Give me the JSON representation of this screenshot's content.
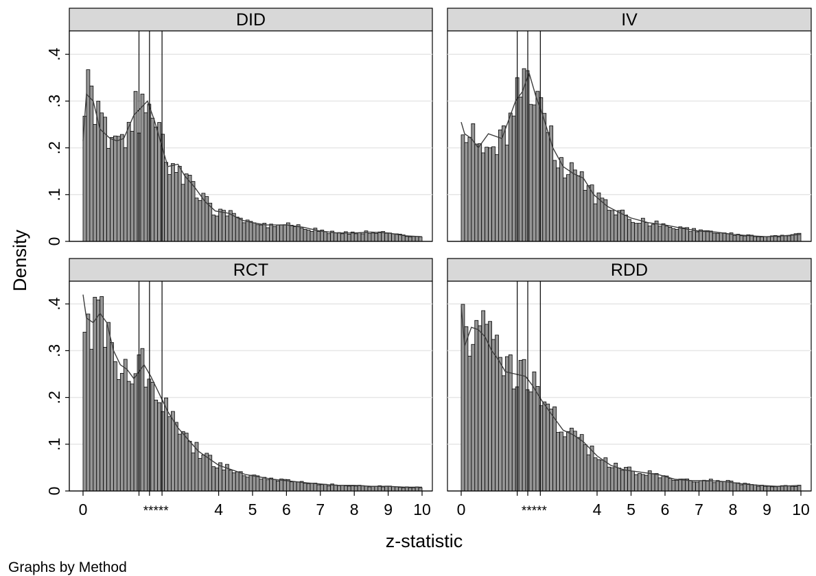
{
  "chart_data": {
    "type": "bar",
    "xlabel": "z-statistic",
    "ylabel": "Density",
    "note": "Graphs by Method",
    "xlim": [
      0,
      10
    ],
    "ylim": [
      0,
      0.42
    ],
    "x_ticks": [
      {
        "value": 0,
        "label": "0"
      },
      {
        "value": 4,
        "label": "4"
      },
      {
        "value": 5,
        "label": "5"
      },
      {
        "value": 6,
        "label": "6"
      },
      {
        "value": 7,
        "label": "7"
      },
      {
        "value": 8,
        "label": "8"
      },
      {
        "value": 9,
        "label": "9"
      },
      {
        "value": 10,
        "label": "10"
      }
    ],
    "x_star_label": {
      "value": 2.15,
      "label": "*****"
    },
    "y_ticks": [
      {
        "value": 0,
        "label": "0"
      },
      {
        "value": 0.1,
        "label": ".1"
      },
      {
        "value": 0.2,
        "label": ".2"
      },
      {
        "value": 0.3,
        "label": ".3"
      },
      {
        "value": 0.4,
        "label": ".4"
      }
    ],
    "significance_lines": [
      1.65,
      1.96,
      2.33
    ],
    "bin_width": 0.1,
    "grid": true,
    "panels": [
      {
        "title": "DID",
        "density": [
          [
            0,
            0.215
          ],
          [
            0.1,
            0.315
          ],
          [
            0.3,
            0.3
          ],
          [
            0.5,
            0.24
          ],
          [
            0.8,
            0.22
          ],
          [
            1.0,
            0.215
          ],
          [
            1.2,
            0.22
          ],
          [
            1.5,
            0.27
          ],
          [
            1.7,
            0.285
          ],
          [
            1.9,
            0.3
          ],
          [
            2.1,
            0.26
          ],
          [
            2.3,
            0.21
          ],
          [
            2.5,
            0.16
          ],
          [
            2.8,
            0.165
          ],
          [
            3.0,
            0.14
          ],
          [
            3.3,
            0.115
          ],
          [
            3.6,
            0.085
          ],
          [
            3.9,
            0.065
          ],
          [
            4.3,
            0.06
          ],
          [
            4.7,
            0.045
          ],
          [
            5.0,
            0.04
          ],
          [
            5.4,
            0.035
          ],
          [
            6.0,
            0.035
          ],
          [
            6.5,
            0.03
          ],
          [
            7.0,
            0.022
          ],
          [
            7.5,
            0.018
          ],
          [
            8.0,
            0.018
          ],
          [
            8.5,
            0.02
          ],
          [
            9.0,
            0.018
          ],
          [
            9.5,
            0.012
          ],
          [
            10.0,
            0.01
          ]
        ]
      },
      {
        "title": "IV",
        "density": [
          [
            0,
            0.255
          ],
          [
            0.1,
            0.23
          ],
          [
            0.3,
            0.22
          ],
          [
            0.5,
            0.2
          ],
          [
            0.8,
            0.23
          ],
          [
            1.2,
            0.22
          ],
          [
            1.6,
            0.3
          ],
          [
            1.8,
            0.32
          ],
          [
            2.0,
            0.36
          ],
          [
            2.2,
            0.31
          ],
          [
            2.4,
            0.27
          ],
          [
            2.7,
            0.2
          ],
          [
            3.0,
            0.16
          ],
          [
            3.3,
            0.145
          ],
          [
            3.6,
            0.135
          ],
          [
            3.9,
            0.1
          ],
          [
            4.3,
            0.075
          ],
          [
            4.7,
            0.06
          ],
          [
            5.0,
            0.05
          ],
          [
            5.5,
            0.04
          ],
          [
            6.0,
            0.035
          ],
          [
            6.5,
            0.028
          ],
          [
            7.0,
            0.022
          ],
          [
            7.5,
            0.02
          ],
          [
            8.0,
            0.015
          ],
          [
            8.5,
            0.012
          ],
          [
            9.0,
            0.01
          ],
          [
            9.5,
            0.012
          ],
          [
            10.0,
            0.015
          ]
        ]
      },
      {
        "title": "RCT",
        "density": [
          [
            0,
            0.42
          ],
          [
            0.1,
            0.37
          ],
          [
            0.3,
            0.36
          ],
          [
            0.5,
            0.38
          ],
          [
            0.7,
            0.36
          ],
          [
            0.9,
            0.3
          ],
          [
            1.1,
            0.27
          ],
          [
            1.3,
            0.26
          ],
          [
            1.5,
            0.24
          ],
          [
            1.8,
            0.27
          ],
          [
            2.0,
            0.245
          ],
          [
            2.2,
            0.215
          ],
          [
            2.5,
            0.17
          ],
          [
            2.8,
            0.135
          ],
          [
            3.1,
            0.11
          ],
          [
            3.4,
            0.085
          ],
          [
            3.7,
            0.07
          ],
          [
            4.0,
            0.055
          ],
          [
            4.4,
            0.045
          ],
          [
            4.8,
            0.035
          ],
          [
            5.2,
            0.03
          ],
          [
            5.6,
            0.025
          ],
          [
            6.0,
            0.022
          ],
          [
            6.5,
            0.018
          ],
          [
            7.0,
            0.015
          ],
          [
            7.5,
            0.012
          ],
          [
            8.0,
            0.012
          ],
          [
            8.5,
            0.01
          ],
          [
            9.0,
            0.01
          ],
          [
            9.5,
            0.008
          ],
          [
            10.0,
            0.008
          ]
        ]
      },
      {
        "title": "RDD",
        "density": [
          [
            0,
            0.395
          ],
          [
            0.1,
            0.31
          ],
          [
            0.3,
            0.35
          ],
          [
            0.5,
            0.345
          ],
          [
            0.7,
            0.33
          ],
          [
            0.9,
            0.3
          ],
          [
            1.1,
            0.28
          ],
          [
            1.3,
            0.255
          ],
          [
            1.6,
            0.25
          ],
          [
            1.9,
            0.245
          ],
          [
            2.1,
            0.225
          ],
          [
            2.4,
            0.19
          ],
          [
            2.7,
            0.16
          ],
          [
            3.0,
            0.13
          ],
          [
            3.3,
            0.12
          ],
          [
            3.6,
            0.105
          ],
          [
            4.0,
            0.075
          ],
          [
            4.4,
            0.055
          ],
          [
            4.8,
            0.045
          ],
          [
            5.3,
            0.04
          ],
          [
            5.8,
            0.035
          ],
          [
            6.3,
            0.025
          ],
          [
            6.8,
            0.022
          ],
          [
            7.3,
            0.022
          ],
          [
            7.8,
            0.02
          ],
          [
            8.3,
            0.015
          ],
          [
            8.8,
            0.012
          ],
          [
            9.3,
            0.01
          ],
          [
            10.0,
            0.012
          ]
        ]
      }
    ]
  }
}
